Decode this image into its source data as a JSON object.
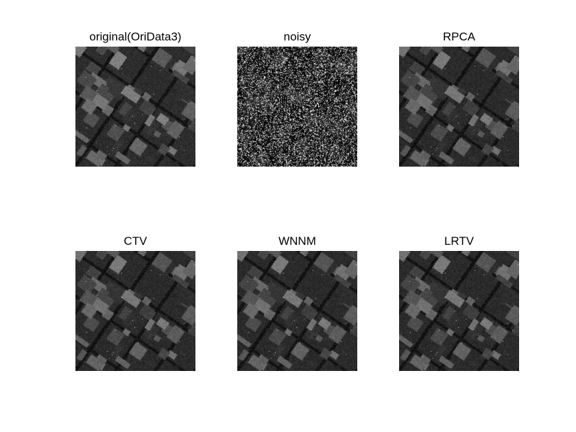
{
  "figure": {
    "panels": [
      {
        "title": "original(OriData3)",
        "kind": "original"
      },
      {
        "title": "noisy",
        "kind": "noisy"
      },
      {
        "title": "RPCA",
        "kind": "restored"
      },
      {
        "title": "CTV",
        "kind": "restored"
      },
      {
        "title": "WNNM",
        "kind": "restored"
      },
      {
        "title": "LRTV",
        "kind": "restored"
      }
    ]
  }
}
